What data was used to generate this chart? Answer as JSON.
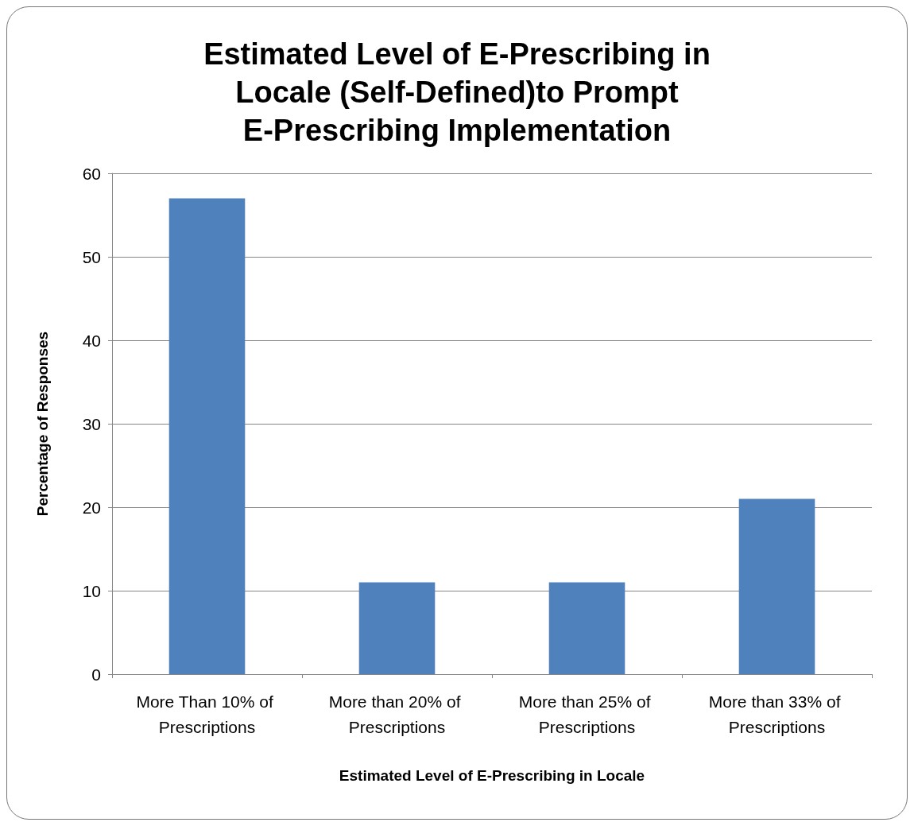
{
  "chart_data": {
    "type": "bar",
    "title": "Estimated Level of E-Prescribing in\nLocale (Self-Defined)to Prompt\nE-Prescribing Implementation",
    "xlabel": "Estimated Level of E-Prescribing in Locale",
    "ylabel": "Percentage of Responses",
    "categories": [
      "More Than 10% of Prescriptions",
      "More than 20% of Prescriptions",
      "More than 25% of Prescriptions",
      "More than 33% of Prescriptions"
    ],
    "values": [
      57,
      11,
      11,
      21
    ],
    "color": "#4f81bd",
    "ylim": [
      0,
      60
    ],
    "yticks": [
      0,
      10,
      20,
      30,
      40,
      50,
      60
    ],
    "grid": "y"
  }
}
